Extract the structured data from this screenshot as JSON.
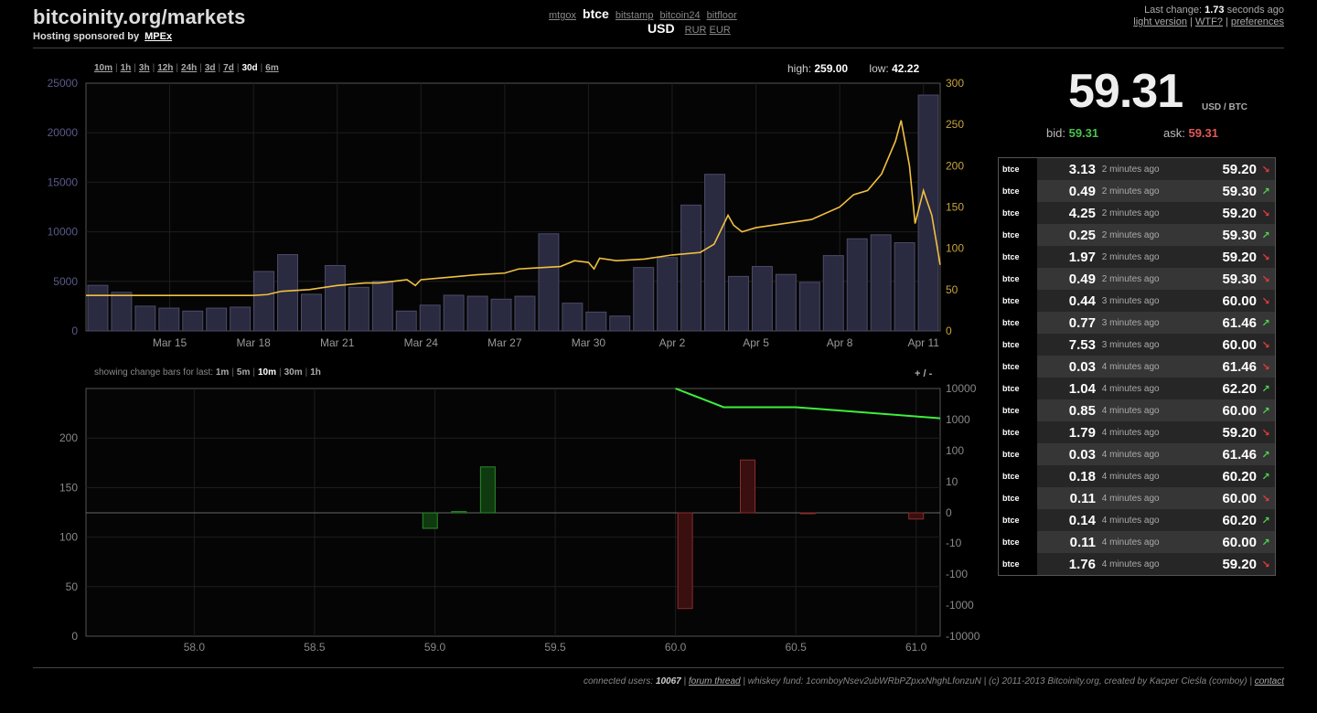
{
  "header": {
    "title": "bitcoinity.org/markets",
    "sponsor_label": "Hosting sponsored by",
    "sponsor_link": "MPEx",
    "exchanges": [
      "mtgox",
      "btce",
      "bitstamp",
      "bitcoin24",
      "bitfloor"
    ],
    "active_exchange": "btce",
    "currencies": [
      "USD",
      "RUR",
      "EUR"
    ],
    "active_currency": "USD",
    "last_change_label": "Last change:",
    "last_change_value": "1.73",
    "last_change_suffix": "seconds ago",
    "links": [
      "light version",
      "WTF?",
      "preferences"
    ]
  },
  "ranges": [
    "10m",
    "1h",
    "3h",
    "12h",
    "24h",
    "3d",
    "7d",
    "30d",
    "6m"
  ],
  "active_range": "30d",
  "hilo": {
    "high_label": "high:",
    "high": "259.00",
    "low_label": "low:",
    "low": "42.22"
  },
  "changebars": {
    "label": "showing change bars for last:",
    "options": [
      "1m",
      "5m",
      "10m",
      "30m",
      "1h"
    ],
    "active": "10m",
    "zoom": "+ / -"
  },
  "ticker": {
    "price": "59.31",
    "unit": "USD / BTC",
    "bid_label": "bid:",
    "bid": "59.31",
    "ask_label": "ask:",
    "ask": "59.31"
  },
  "trades": [
    {
      "ex": "btce",
      "amount": "3.13",
      "time": "2 minutes ago",
      "price": "59.20",
      "dir": "down"
    },
    {
      "ex": "btce",
      "amount": "0.49",
      "time": "2 minutes ago",
      "price": "59.30",
      "dir": "up"
    },
    {
      "ex": "btce",
      "amount": "4.25",
      "time": "2 minutes ago",
      "price": "59.20",
      "dir": "down"
    },
    {
      "ex": "btce",
      "amount": "0.25",
      "time": "2 minutes ago",
      "price": "59.30",
      "dir": "up"
    },
    {
      "ex": "btce",
      "amount": "1.97",
      "time": "2 minutes ago",
      "price": "59.20",
      "dir": "down"
    },
    {
      "ex": "btce",
      "amount": "0.49",
      "time": "2 minutes ago",
      "price": "59.30",
      "dir": "down"
    },
    {
      "ex": "btce",
      "amount": "0.44",
      "time": "3 minutes ago",
      "price": "60.00",
      "dir": "down"
    },
    {
      "ex": "btce",
      "amount": "0.77",
      "time": "3 minutes ago",
      "price": "61.46",
      "dir": "up"
    },
    {
      "ex": "btce",
      "amount": "7.53",
      "time": "3 minutes ago",
      "price": "60.00",
      "dir": "down"
    },
    {
      "ex": "btce",
      "amount": "0.03",
      "time": "4 minutes ago",
      "price": "61.46",
      "dir": "down"
    },
    {
      "ex": "btce",
      "amount": "1.04",
      "time": "4 minutes ago",
      "price": "62.20",
      "dir": "up"
    },
    {
      "ex": "btce",
      "amount": "0.85",
      "time": "4 minutes ago",
      "price": "60.00",
      "dir": "up"
    },
    {
      "ex": "btce",
      "amount": "1.79",
      "time": "4 minutes ago",
      "price": "59.20",
      "dir": "down"
    },
    {
      "ex": "btce",
      "amount": "0.03",
      "time": "4 minutes ago",
      "price": "61.46",
      "dir": "up"
    },
    {
      "ex": "btce",
      "amount": "0.18",
      "time": "4 minutes ago",
      "price": "60.20",
      "dir": "up"
    },
    {
      "ex": "btce",
      "amount": "0.11",
      "time": "4 minutes ago",
      "price": "60.00",
      "dir": "down"
    },
    {
      "ex": "btce",
      "amount": "0.14",
      "time": "4 minutes ago",
      "price": "60.20",
      "dir": "up"
    },
    {
      "ex": "btce",
      "amount": "0.11",
      "time": "4 minutes ago",
      "price": "60.00",
      "dir": "up"
    },
    {
      "ex": "btce",
      "amount": "1.76",
      "time": "4 minutes ago",
      "price": "59.20",
      "dir": "down"
    }
  ],
  "footer": {
    "users_label": "connected users:",
    "users": "10067",
    "forum": "forum thread",
    "fund": "whiskey fund: 1comboyNsev2ubWRbPZpxxNhghLfonzuN",
    "copyright": "(c) 2011-2013 Bitcoinity.org, created by Kacper Cieśla (comboy)",
    "contact": "contact"
  },
  "colors": {
    "price_line": "#f0c040",
    "volume_bar": "#2a2a40",
    "buy": "#49c24b",
    "sell": "#e25757",
    "depth_line": "#3cf03c"
  },
  "chart_data": [
    {
      "type": "bar+line",
      "title": "",
      "x_tick_labels": [
        "Mar 15",
        "Mar 18",
        "Mar 21",
        "Mar 24",
        "Mar 27",
        "Mar 30",
        "Apr 2",
        "Apr 5",
        "Apr 8",
        "Apr 11"
      ],
      "x_tick_days": [
        3,
        6,
        9,
        12,
        15,
        18,
        21,
        24,
        27,
        30
      ],
      "x_range_days": [
        0,
        30.6
      ],
      "y_left_ticks": [
        0,
        5000,
        10000,
        15000,
        20000,
        25000
      ],
      "y_left_range": [
        0,
        25000
      ],
      "y_right_ticks": [
        0,
        50,
        100,
        150,
        200,
        250,
        300
      ],
      "y_right_range": [
        0,
        300
      ],
      "volume": [
        4600,
        3900,
        2500,
        2300,
        2000,
        2300,
        2400,
        6000,
        7700,
        3700,
        6600,
        4400,
        5000,
        2000,
        2600,
        3600,
        3500,
        3200,
        3500,
        9800,
        2800,
        1900,
        1500,
        6400,
        7400,
        12700,
        15800,
        5500,
        6500,
        5700,
        4900,
        7600,
        9300,
        9700,
        8900,
        23800
      ],
      "price": [
        [
          0,
          43
        ],
        [
          3,
          43
        ],
        [
          6,
          43
        ],
        [
          6.5,
          44
        ],
        [
          7,
          48
        ],
        [
          8,
          50
        ],
        [
          9,
          55
        ],
        [
          10,
          58
        ],
        [
          10.5,
          58
        ],
        [
          11,
          60
        ],
        [
          11.5,
          62
        ],
        [
          11.8,
          55
        ],
        [
          12,
          62
        ],
        [
          13,
          65
        ],
        [
          14,
          68
        ],
        [
          15,
          70
        ],
        [
          15.5,
          75
        ],
        [
          16,
          76
        ],
        [
          17,
          78
        ],
        [
          17.5,
          85
        ],
        [
          18,
          83
        ],
        [
          18.2,
          75
        ],
        [
          18.4,
          88
        ],
        [
          19,
          85
        ],
        [
          20,
          87
        ],
        [
          21,
          92
        ],
        [
          22,
          95
        ],
        [
          22.5,
          105
        ],
        [
          23,
          140
        ],
        [
          23.2,
          128
        ],
        [
          23.5,
          120
        ],
        [
          24,
          125
        ],
        [
          25,
          130
        ],
        [
          26,
          135
        ],
        [
          27,
          150
        ],
        [
          27.5,
          165
        ],
        [
          28,
          170
        ],
        [
          28.5,
          190
        ],
        [
          29,
          230
        ],
        [
          29.2,
          255
        ],
        [
          29.5,
          200
        ],
        [
          29.7,
          130
        ],
        [
          30,
          170
        ],
        [
          30.3,
          140
        ],
        [
          30.6,
          80
        ]
      ]
    },
    {
      "type": "bar",
      "title": "",
      "x_tick_labels": [
        "58.0",
        "58.5",
        "59.0",
        "59.5",
        "60.0",
        "60.5",
        "61.0"
      ],
      "x_range": [
        57.55,
        61.1
      ],
      "y_left_ticks": [
        0,
        50,
        100,
        150,
        200
      ],
      "y_right_tick_labels": [
        "10000",
        "1000",
        "100",
        "10",
        "0",
        "-10",
        "-100",
        "-1000",
        "-10000"
      ],
      "bars": [
        {
          "price": 58.98,
          "change": -5,
          "side": "buy"
        },
        {
          "price": 59.1,
          "change": 0.4,
          "side": "buy"
        },
        {
          "price": 59.22,
          "change": 30,
          "side": "buy"
        },
        {
          "price": 60.04,
          "change": -1200,
          "side": "sell"
        },
        {
          "price": 60.3,
          "change": 50,
          "side": "sell"
        },
        {
          "price": 60.55,
          "change": -0.1,
          "side": "sell"
        },
        {
          "price": 61.0,
          "change": -2,
          "side": "sell"
        }
      ],
      "depth_line": [
        [
          60.0,
          10000
        ],
        [
          60.2,
          2500
        ],
        [
          60.5,
          2500
        ],
        [
          61.1,
          1100
        ]
      ]
    }
  ]
}
